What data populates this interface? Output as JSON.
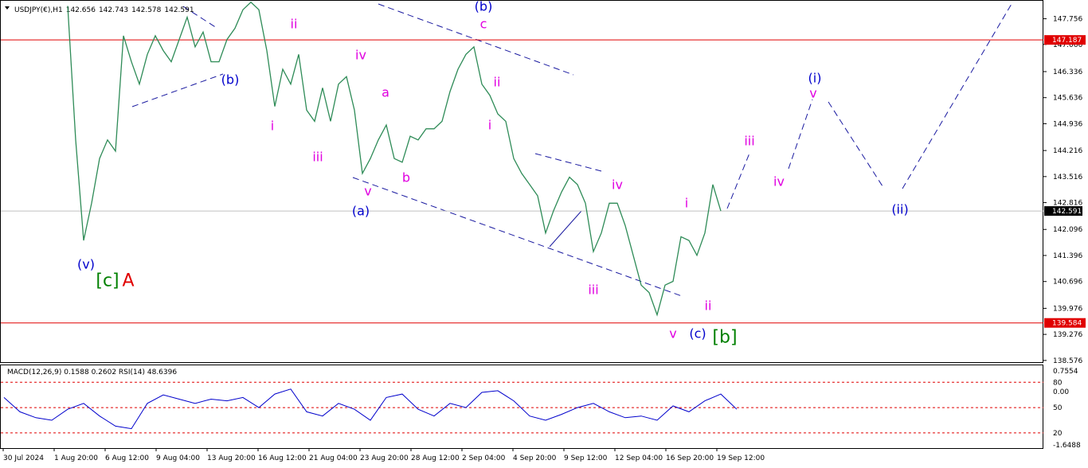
{
  "chart_data": {
    "type": "line",
    "title": "USDJPY(€),H1",
    "ohlc": [
      142.656,
      142.743,
      142.578,
      142.591
    ],
    "color": "#2e8b57",
    "values": [
      148.1,
      144.5,
      141.8,
      142.8,
      144.0,
      144.5,
      144.2,
      147.3,
      146.6,
      146.0,
      146.8,
      147.3,
      146.9,
      146.6,
      147.2,
      147.8,
      147.0,
      147.4,
      146.6,
      146.6,
      147.2,
      147.5,
      148.0,
      148.2,
      148.0,
      146.9,
      145.4,
      146.4,
      146.0,
      146.8,
      145.3,
      145.0,
      145.9,
      145.0,
      146.0,
      146.2,
      145.3,
      143.6,
      144.0,
      144.5,
      144.9,
      144.0,
      143.9,
      144.6,
      144.5,
      144.8,
      144.8,
      145.0,
      145.8,
      146.4,
      146.8,
      147.0,
      146.0,
      145.7,
      145.2,
      145.0,
      144.0,
      143.6,
      143.3,
      143.0,
      142.0,
      142.6,
      143.1,
      143.5,
      143.3,
      142.8,
      141.5,
      142.0,
      142.8,
      142.8,
      142.2,
      141.4,
      140.6,
      140.4,
      139.8,
      140.6,
      140.7,
      141.9,
      141.8,
      141.4,
      142.0,
      143.3,
      142.591
    ],
    "ylim": [
      138.53,
      148.26
    ],
    "yticks": [
      147.756,
      147.066,
      146.336,
      145.636,
      144.936,
      144.216,
      143.516,
      142.816,
      142.096,
      141.396,
      140.696,
      139.976,
      139.276,
      138.576
    ],
    "levels": [
      {
        "value": 147.187,
        "color": "#e00000"
      },
      {
        "value": 139.584,
        "color": "#e00000"
      }
    ],
    "current_price": 142.591,
    "x_labels": [
      "30 Jul 2024",
      "1 Aug 20:00",
      "6 Aug 12:00",
      "9 Aug 04:00",
      "13 Aug 20:00",
      "16 Aug 12:00",
      "21 Aug 04:00",
      "23 Aug 20:00",
      "28 Aug 12:00",
      "2 Sep 04:00",
      "4 Sep 20:00",
      "9 Sep 12:00",
      "12 Sep 04:00",
      "16 Sep 20:00",
      "19 Sep 12:00"
    ],
    "annotations": [
      {
        "text": "(v)",
        "color": "#0000cc"
      },
      {
        "text": "[c]",
        "color": "#008000"
      },
      {
        "text": "A",
        "color": "#e00000"
      },
      {
        "text": "(b)",
        "color": "#0000cc"
      },
      {
        "text": "ii",
        "color": "#e000e0"
      },
      {
        "text": "i",
        "color": "#e000e0"
      },
      {
        "text": "iii",
        "color": "#e000e0"
      },
      {
        "text": "iv",
        "color": "#e000e0"
      },
      {
        "text": "v",
        "color": "#e000e0"
      },
      {
        "text": "(a)",
        "color": "#0000cc"
      },
      {
        "text": "a",
        "color": "#e000e0"
      },
      {
        "text": "b",
        "color": "#e000e0"
      },
      {
        "text": "(b)",
        "color": "#0000cc"
      },
      {
        "text": "c",
        "color": "#e000e0"
      },
      {
        "text": "ii",
        "color": "#e000e0"
      },
      {
        "text": "i",
        "color": "#e000e0"
      },
      {
        "text": "iii",
        "color": "#e000e0"
      },
      {
        "text": "iv",
        "color": "#e000e0"
      },
      {
        "text": "v",
        "color": "#e000e0"
      },
      {
        "text": "(c)",
        "color": "#0000cc"
      },
      {
        "text": "[b]",
        "color": "#008000"
      },
      {
        "text": "i",
        "color": "#e000e0"
      },
      {
        "text": "ii",
        "color": "#e000e0"
      },
      {
        "text": "iii",
        "color": "#e000e0"
      },
      {
        "text": "iv",
        "color": "#e000e0"
      },
      {
        "text": "v",
        "color": "#e000e0"
      },
      {
        "text": "(i)",
        "color": "#0000cc"
      },
      {
        "text": "(ii)",
        "color": "#0000cc"
      }
    ],
    "indicator": {
      "title": "MACD(12,26,9) 0.1588 0.2602 RSI(14) 48.6396",
      "color": "#0000cc",
      "values": [
        62,
        45,
        38,
        35,
        48,
        55,
        40,
        28,
        25,
        55,
        65,
        60,
        55,
        60,
        58,
        62,
        50,
        66,
        72,
        45,
        40,
        55,
        48,
        35,
        62,
        66,
        48,
        40,
        55,
        50,
        68,
        70,
        58,
        40,
        35,
        42,
        50,
        55,
        45,
        38,
        40,
        35,
        52,
        45,
        58,
        66,
        48
      ],
      "ylim": [
        2,
        101
      ],
      "levels": [
        80,
        50,
        20
      ],
      "macd_ticks": [
        0.7554,
        {
          "value": 0,
          "label": "0.00"
        },
        -1.6488
      ]
    }
  }
}
